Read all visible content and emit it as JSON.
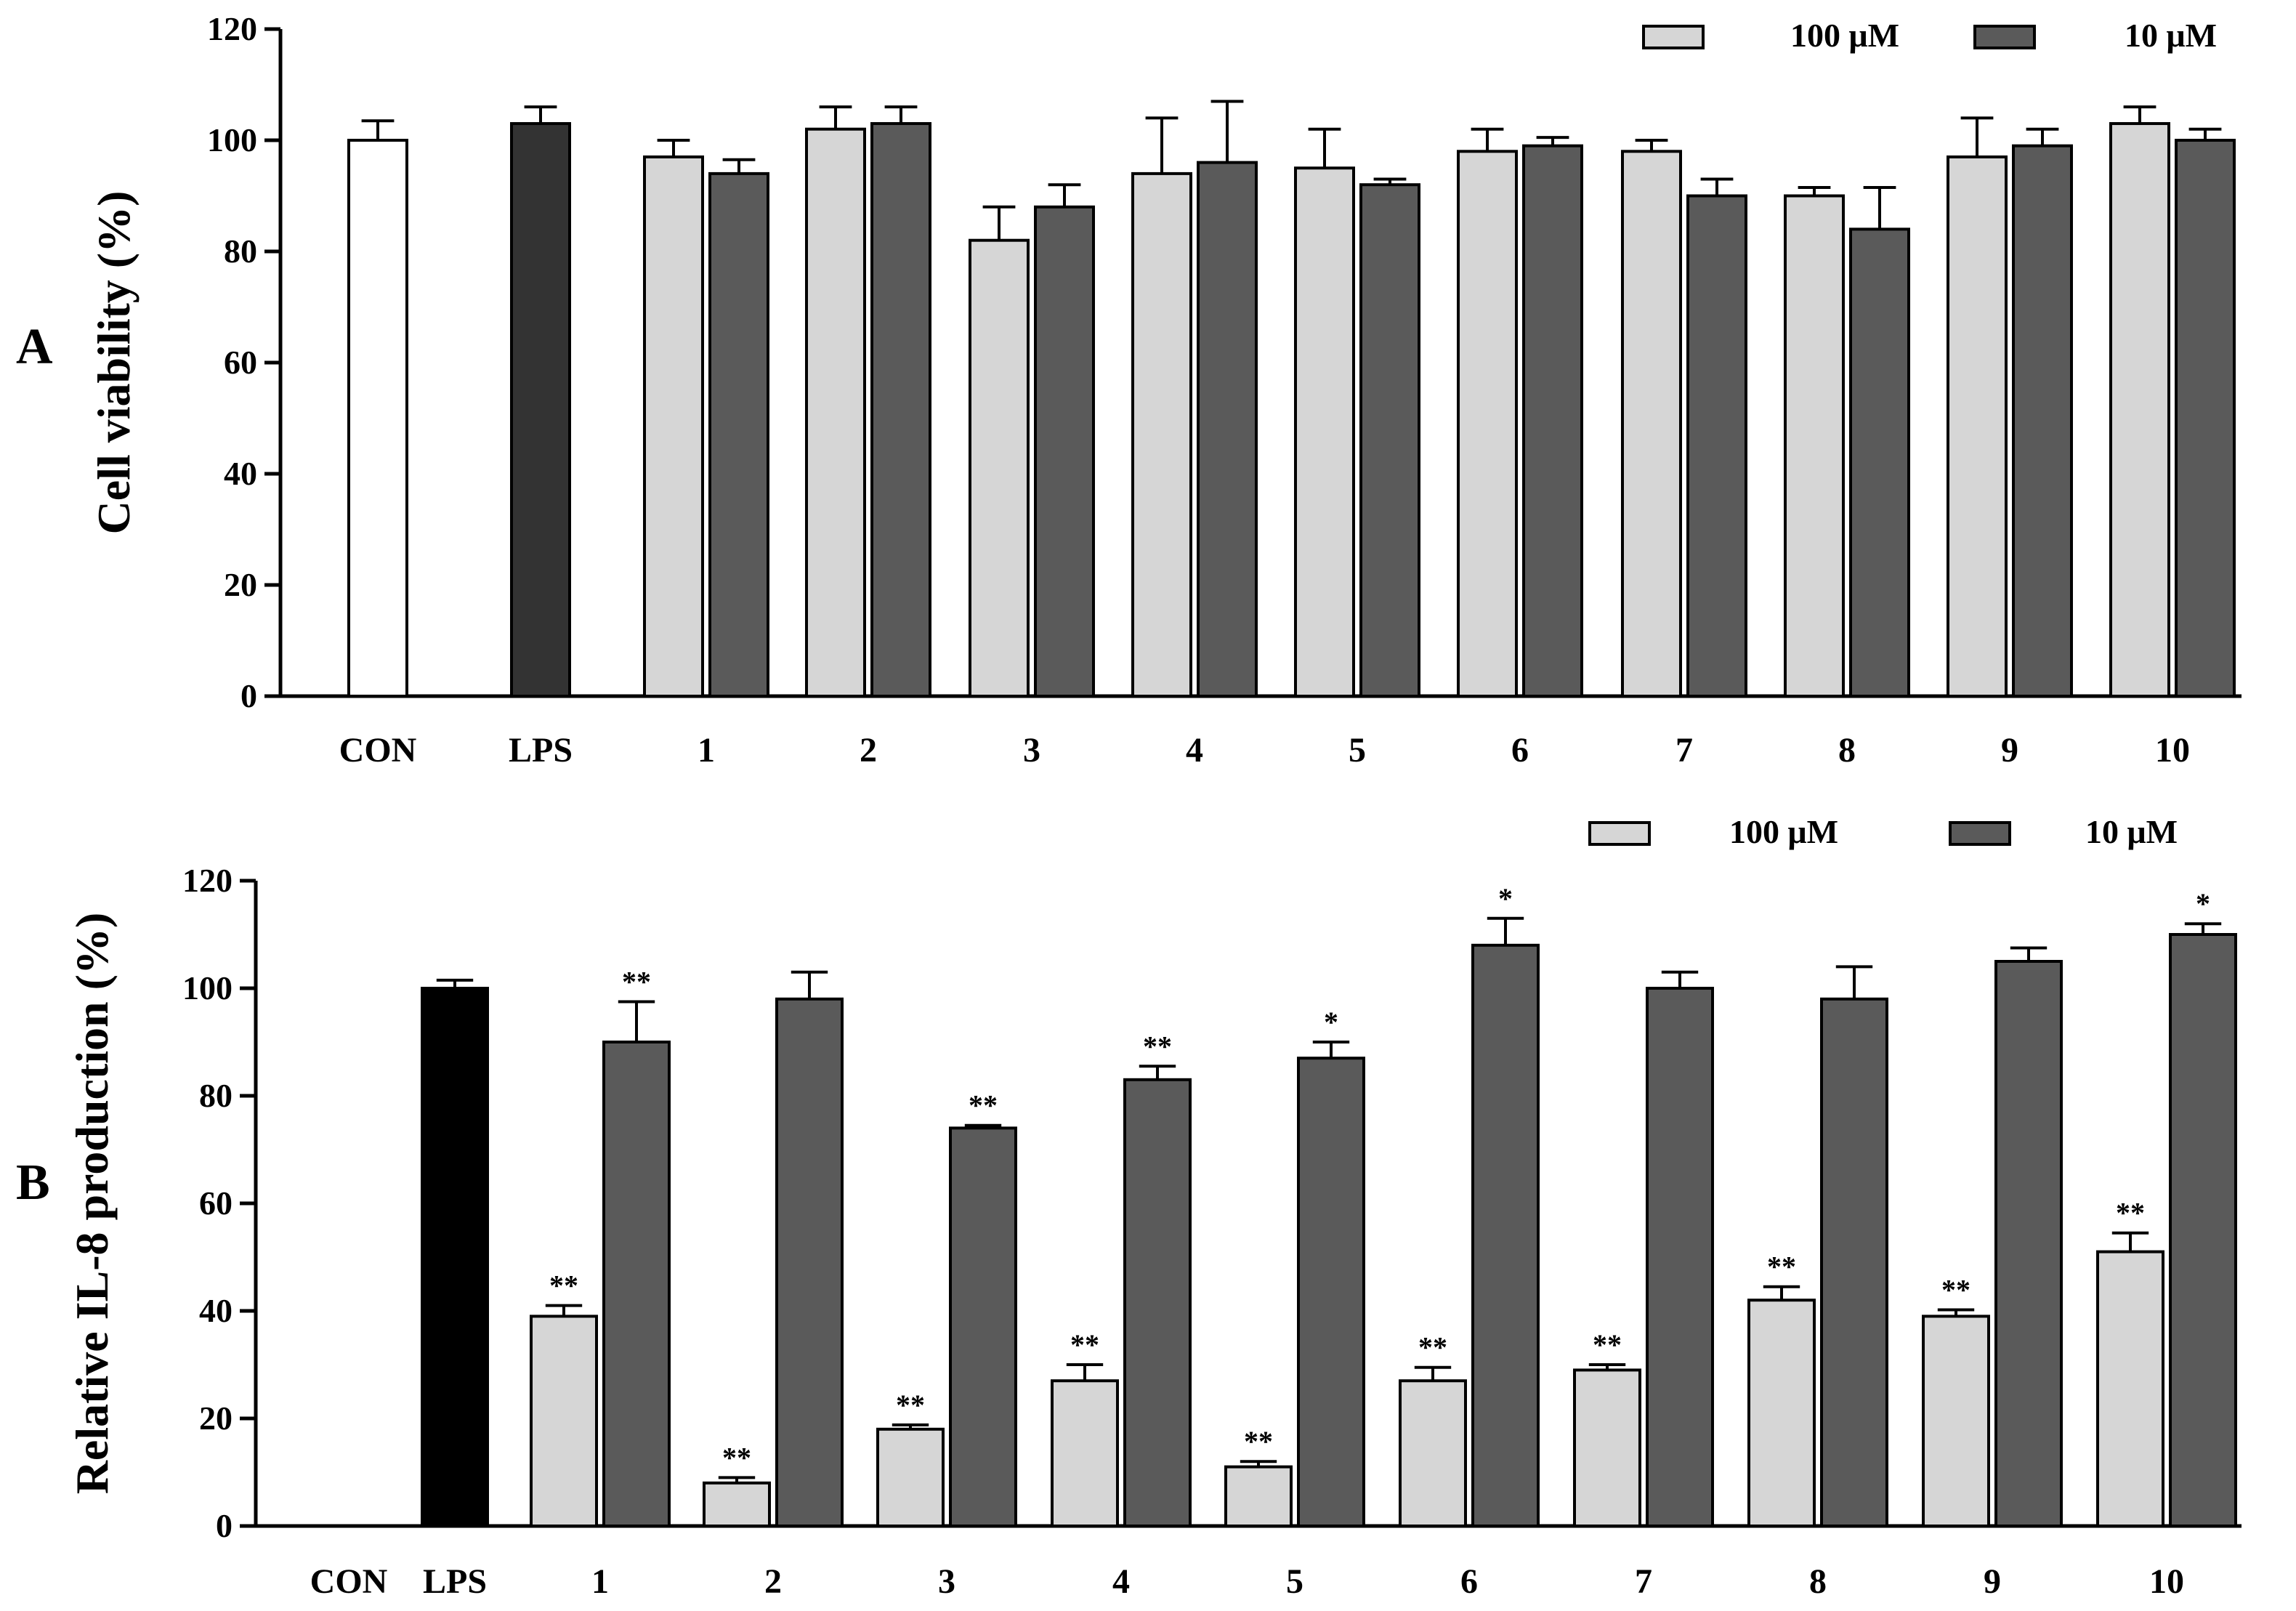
{
  "chart_data": [
    {
      "panel": "A",
      "type": "bar",
      "ylabel": "Cell viability (%)",
      "ylim": [
        0,
        120
      ],
      "yticks": [
        "0",
        "20",
        "40",
        "60",
        "80",
        "100",
        "120"
      ],
      "legend": {
        "placement": "top-right",
        "entries": [
          "100 μM",
          "10 μM"
        ]
      },
      "controls": [
        {
          "label": "CON",
          "value": 100,
          "error": 3.5,
          "fill": "white"
        },
        {
          "label": "LPS",
          "value": 103,
          "error": 3,
          "fill": "black-grey"
        }
      ],
      "categories": [
        "1",
        "2",
        "3",
        "4",
        "5",
        "6",
        "7",
        "8",
        "9",
        "10"
      ],
      "series": [
        {
          "name": "100 μM",
          "color": "#d6d6d6",
          "values": [
            97,
            102,
            82,
            94,
            95,
            98,
            98,
            90,
            97,
            103
          ],
          "errors": [
            3,
            4,
            6,
            10,
            7,
            4,
            2,
            1.5,
            7,
            3
          ],
          "annotations": [
            "",
            "",
            "",
            "",
            "",
            "",
            "",
            "",
            "",
            ""
          ]
        },
        {
          "name": "10 μM",
          "color": "#5a5a5a",
          "values": [
            94,
            103,
            88,
            96,
            92,
            99,
            90,
            84,
            99,
            100
          ],
          "errors": [
            2.5,
            3,
            4,
            11,
            1,
            1.5,
            3,
            7.5,
            3,
            2
          ],
          "annotations": [
            "",
            "",
            "",
            "",
            "",
            "",
            "",
            "",
            "",
            ""
          ]
        }
      ]
    },
    {
      "panel": "B",
      "type": "bar",
      "ylabel": "Relative IL-8 production (%)",
      "ylim": [
        0,
        120
      ],
      "yticks": [
        "0",
        "20",
        "40",
        "60",
        "80",
        "100",
        "120"
      ],
      "legend": {
        "placement": "top-right",
        "entries": [
          "100 μM",
          "10 μM"
        ]
      },
      "controls": [
        {
          "label": "CON",
          "value": 0,
          "error": 0,
          "fill": "white"
        },
        {
          "label": "LPS",
          "value": 100,
          "error": 1.5,
          "fill": "black"
        }
      ],
      "categories": [
        "1",
        "2",
        "3",
        "4",
        "5",
        "6",
        "7",
        "8",
        "9",
        "10"
      ],
      "series": [
        {
          "name": "100 μM",
          "color": "#d6d6d6",
          "values": [
            39,
            8,
            18,
            27,
            11,
            27,
            29,
            42,
            39,
            51
          ],
          "errors": [
            2,
            1,
            0.8,
            3,
            1,
            2.5,
            1,
            2.5,
            1.2,
            3.5
          ],
          "annotations": [
            "**",
            "**",
            "**",
            "**",
            "**",
            "**",
            "**",
            "**",
            "**",
            "**"
          ]
        },
        {
          "name": "10 μM",
          "color": "#5a5a5a",
          "values": [
            90,
            98,
            74,
            83,
            87,
            108,
            100,
            98,
            105,
            110
          ],
          "errors": [
            7.5,
            5,
            0.5,
            2.5,
            3,
            5,
            3,
            6,
            2.5,
            2
          ],
          "annotations": [
            "**",
            "",
            "**",
            "**",
            "*",
            "*",
            "",
            "",
            "",
            "*"
          ]
        }
      ]
    }
  ]
}
